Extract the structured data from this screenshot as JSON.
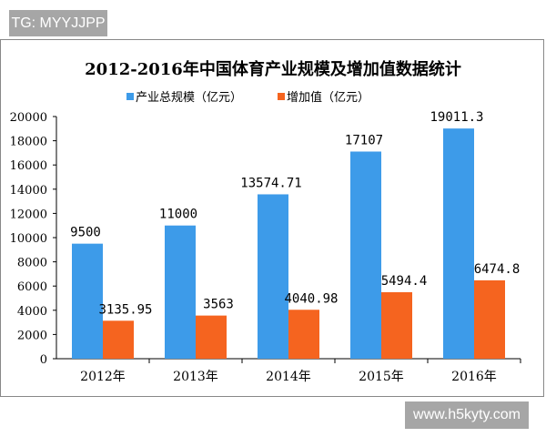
{
  "overlay": {
    "top_tag": "TG: MYYJJPP",
    "bottom_tag": "www.h5kyty.com"
  },
  "chart_data": {
    "type": "bar",
    "title": "2012-2016年中国体育产业规模及增加值数据统计",
    "categories": [
      "2012年",
      "2013年",
      "2014年",
      "2015年",
      "2016年"
    ],
    "series": [
      {
        "name": "产业总规模（亿元）",
        "values": [
          9500,
          11000,
          13574.71,
          17107,
          19011.3
        ],
        "labels": [
          "9500",
          "11000",
          "13574.71",
          "17107",
          "19011.3"
        ],
        "color": "#3d9be9"
      },
      {
        "name": "增加值（亿元）",
        "values": [
          3135.95,
          3563,
          4040.98,
          5494.4,
          6474.8
        ],
        "labels": [
          "3135.95",
          "3563",
          "4040.98",
          "5494.4",
          "6474.8"
        ],
        "color": "#f5641f"
      }
    ],
    "ylim": [
      0,
      20000
    ],
    "yticks": [
      "0",
      "2000",
      "4000",
      "6000",
      "8000",
      "10000",
      "12000",
      "14000",
      "16000",
      "18000",
      "20000"
    ],
    "grid": false,
    "legend": "top"
  }
}
